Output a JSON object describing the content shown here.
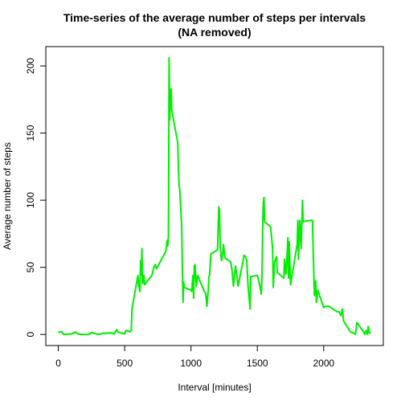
{
  "chart_data": {
    "type": "line",
    "title": [
      "Time-series of the average number of steps per intervals",
      "(NA removed)"
    ],
    "x_label": "Interval [minutes]",
    "y_label": "Average number of steps",
    "xlim": [
      -94.2,
      2449.2
    ],
    "xticks": [
      0,
      500,
      1000,
      1500,
      2000
    ],
    "ylim": [
      -8.25,
      214.4
    ],
    "yticks": [
      0,
      50,
      100,
      150,
      200
    ],
    "series": [
      {
        "color": "#00ee00",
        "x": [
          0,
          25,
          40,
          100,
          130,
          150,
          200,
          230,
          250,
          300,
          330,
          400,
          420,
          440,
          450,
          500,
          510,
          540,
          550,
          555,
          600,
          605,
          615,
          620,
          625,
          630,
          635,
          645,
          650,
          705,
          720,
          730,
          740,
          800,
          810,
          820,
          825,
          830,
          835,
          840,
          845,
          850,
          855,
          900,
          905,
          910,
          915,
          930,
          935,
          940,
          945,
          950,
          1000,
          1005,
          1015,
          1020,
          1025,
          1030,
          1040,
          1050,
          1100,
          1110,
          1120,
          1130,
          1135,
          1140,
          1150,
          1200,
          1205,
          1210,
          1215,
          1220,
          1230,
          1240,
          1245,
          1255,
          1300,
          1310,
          1320,
          1335,
          1345,
          1355,
          1400,
          1410,
          1420,
          1430,
          1435,
          1445,
          1450,
          1500,
          1515,
          1530,
          1535,
          1540,
          1545,
          1550,
          1555,
          1600,
          1615,
          1620,
          1630,
          1645,
          1650,
          1700,
          1705,
          1715,
          1720,
          1730,
          1735,
          1740,
          1750,
          1800,
          1805,
          1810,
          1820,
          1830,
          1840,
          1845,
          1900,
          1915,
          1930,
          1940,
          1945,
          1955,
          2000,
          2010,
          2025,
          2040,
          2100,
          2115,
          2130,
          2140,
          2150,
          2200,
          2225,
          2240,
          2250,
          2300,
          2310,
          2320,
          2330,
          2335,
          2345,
          2355
        ],
        "values": [
          1.7,
          2.1,
          0,
          0.4,
          1.8,
          0.2,
          0,
          0,
          1.5,
          0,
          0.7,
          1.2,
          0.3,
          3.5,
          1.6,
          0.5,
          3,
          2,
          3,
          19,
          44,
          37,
          32,
          55,
          44,
          64,
          38,
          44,
          37,
          44,
          50,
          52,
          49,
          60,
          62,
          70,
          66,
          73,
          206,
          160,
          180,
          183,
          167,
          143,
          125,
          111,
          108,
          80,
          49,
          24,
          39,
          35,
          33,
          32,
          44,
          27,
          51,
          52,
          36,
          44,
          32,
          31,
          21,
          33,
          43,
          44,
          60,
          63,
          80,
          95,
          92,
          65,
          55,
          61,
          67,
          57,
          54,
          47,
          36,
          51,
          44,
          36,
          59,
          58,
          55,
          36,
          31,
          19,
          43,
          44,
          38,
          30,
          44,
          78,
          98,
          102,
          84,
          80,
          64,
          35,
          54,
          58,
          46,
          42,
          56,
          45,
          50,
          72,
          42,
          69,
          37,
          67,
          85,
          56,
          85,
          64,
          100,
          84,
          85,
          85,
          29,
          40,
          24,
          33,
          20,
          21,
          21,
          21,
          17,
          17,
          14,
          19,
          10,
          2,
          1,
          0,
          9,
          2,
          0,
          3,
          0,
          6,
          1,
          1
        ]
      }
    ]
  }
}
